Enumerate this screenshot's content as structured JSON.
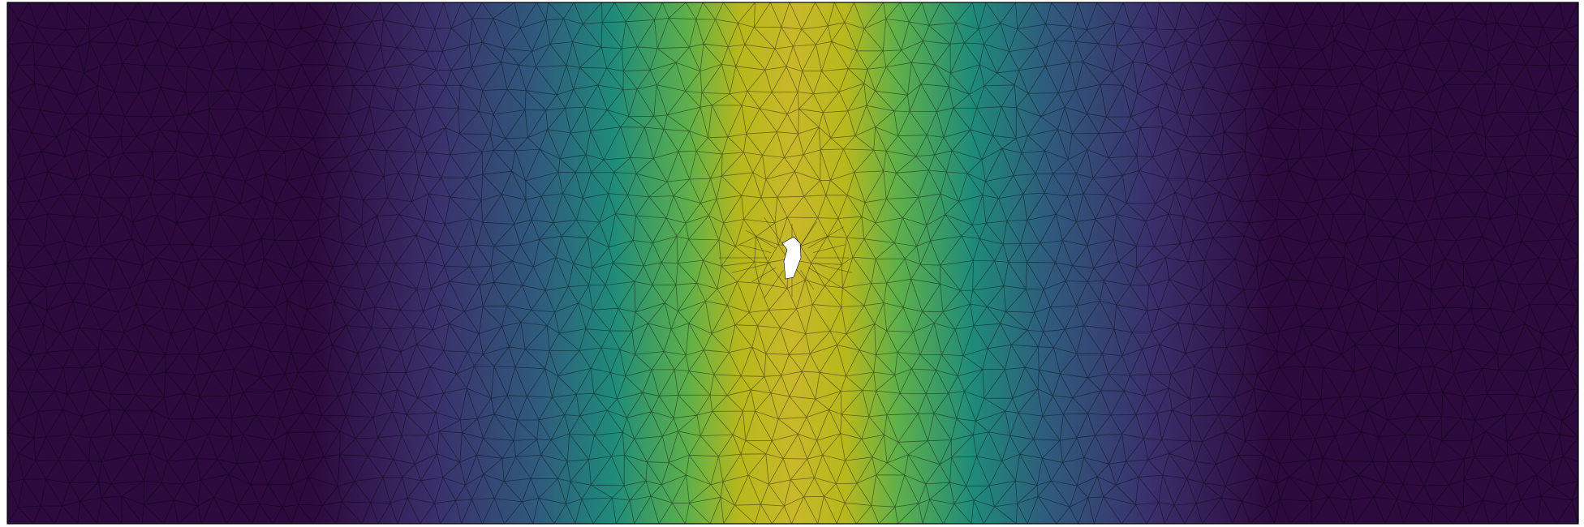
{
  "field_plot": {
    "colormap": "viridis",
    "colormap_stops": [
      "#2d0a3e",
      "#3a2f6b",
      "#2f5b7d",
      "#1f8b7a",
      "#5fb04a",
      "#b8b81c",
      "#c8b82a"
    ],
    "band_center_fraction": 0.5,
    "band_width_fraction": 0.095,
    "mesh_line_color": "#000000",
    "mesh_type": "triangular",
    "hole_present": true,
    "hole_color": "#ffffff"
  }
}
